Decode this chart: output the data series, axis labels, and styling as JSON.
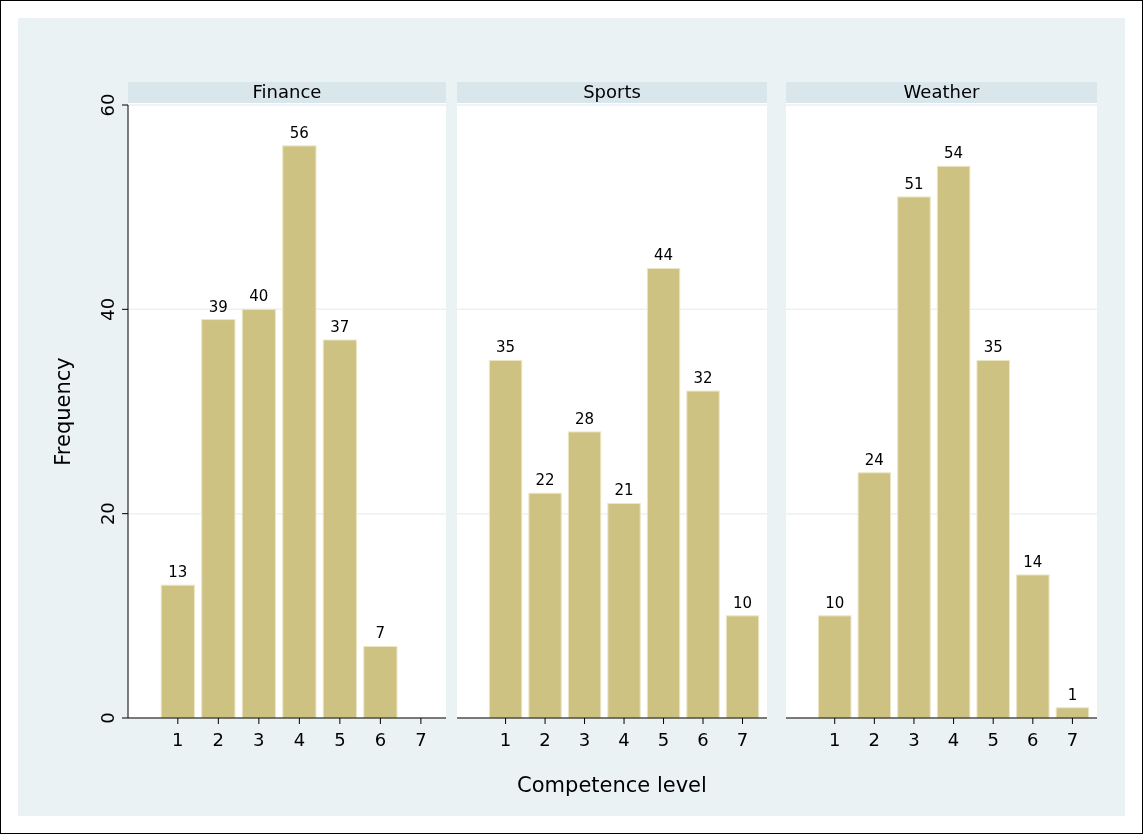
{
  "chart_data": [
    {
      "type": "bar",
      "title": "Finance",
      "ylabel": "Frequency",
      "categories": [
        "1",
        "2",
        "3",
        "4",
        "5",
        "6",
        "7"
      ],
      "values": [
        13,
        39,
        40,
        56,
        37,
        7,
        null
      ],
      "color": "#cec283",
      "ylim": [
        0,
        60
      ],
      "yticks": [
        0,
        20,
        40,
        60
      ],
      "grid": "y",
      "data_labels": true
    },
    {
      "type": "bar",
      "title": "Sports",
      "xlabel": "Competence level",
      "categories": [
        "1",
        "2",
        "3",
        "4",
        "5",
        "6",
        "7"
      ],
      "values": [
        35,
        22,
        28,
        21,
        44,
        32,
        10
      ],
      "color": "#cec283",
      "ylim": [
        0,
        60
      ],
      "yticks": [
        0,
        20,
        40,
        60
      ],
      "grid": "y",
      "data_labels": true,
      "tick_labels": "x"
    },
    {
      "type": "bar",
      "title": "Weather",
      "categories": [
        "1",
        "2",
        "3",
        "4",
        "5",
        "6",
        "7"
      ],
      "values": [
        10,
        24,
        51,
        54,
        35,
        14,
        1
      ],
      "color": "#cec283",
      "ylim": [
        0,
        60
      ],
      "yticks": [
        0,
        20,
        40,
        60
      ],
      "grid": "y",
      "data_labels": true,
      "tick_labels": "x"
    }
  ]
}
